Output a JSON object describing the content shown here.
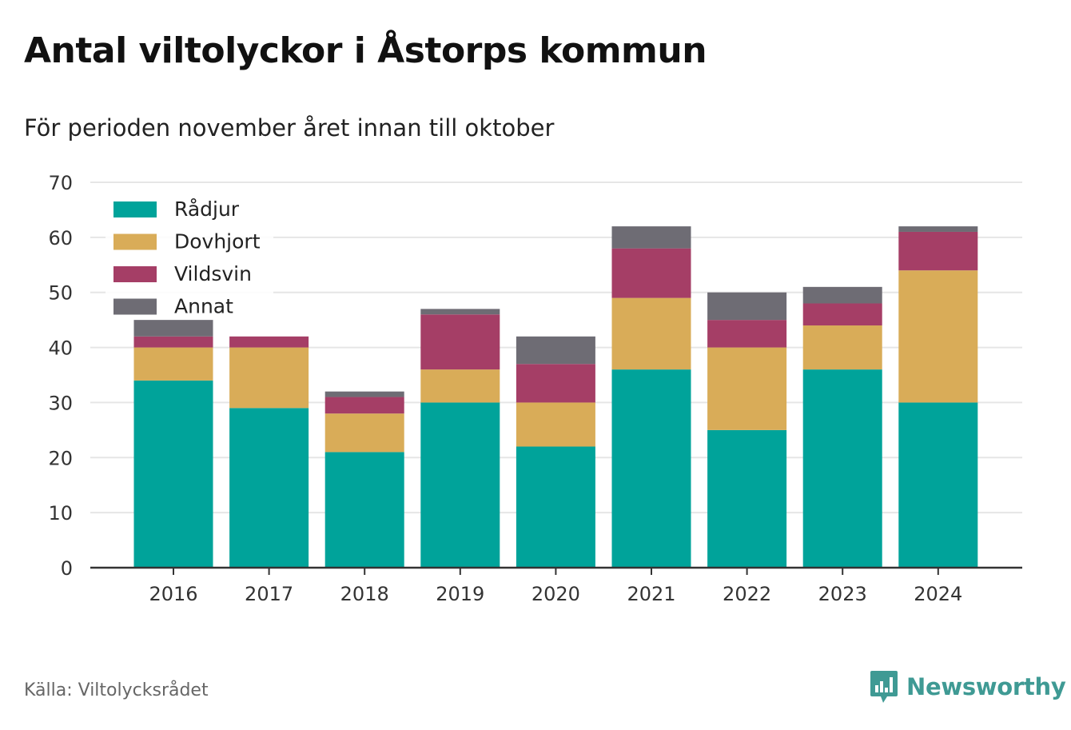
{
  "header": {
    "title": "Antal viltolyckor i Åstorps kommun",
    "subtitle": "För perioden november året innan till oktober"
  },
  "footer": {
    "source": "Källa: Viltolycksrådet",
    "brand": "Newsworthy",
    "brand_icon": "bar-chart-speech-bubble-icon"
  },
  "colors": {
    "background": "#ffffff",
    "grid": "#e6e6e6",
    "axis": "#333333",
    "brand": "#3f9a94"
  },
  "chart_data": {
    "type": "bar",
    "stacked": true,
    "categories": [
      "2016",
      "2017",
      "2018",
      "2019",
      "2020",
      "2021",
      "2022",
      "2023",
      "2024"
    ],
    "series": [
      {
        "name": "Rådjur",
        "color": "#00a39a",
        "values": [
          34,
          29,
          21,
          30,
          22,
          36,
          25,
          36,
          30
        ]
      },
      {
        "name": "Dovhjort",
        "color": "#d9ac58",
        "values": [
          6,
          11,
          7,
          6,
          8,
          13,
          15,
          8,
          24
        ]
      },
      {
        "name": "Vildsvin",
        "color": "#a53e66",
        "values": [
          2,
          2,
          3,
          10,
          7,
          9,
          5,
          4,
          7
        ]
      },
      {
        "name": "Annat",
        "color": "#6e6c74",
        "values": [
          3,
          0,
          1,
          1,
          5,
          4,
          5,
          3,
          1
        ]
      }
    ],
    "ylim": [
      0,
      70
    ],
    "yticks": [
      0,
      10,
      20,
      30,
      40,
      50,
      60,
      70
    ],
    "grid": true,
    "legend": "top-left",
    "xlabel": "",
    "ylabel": ""
  }
}
